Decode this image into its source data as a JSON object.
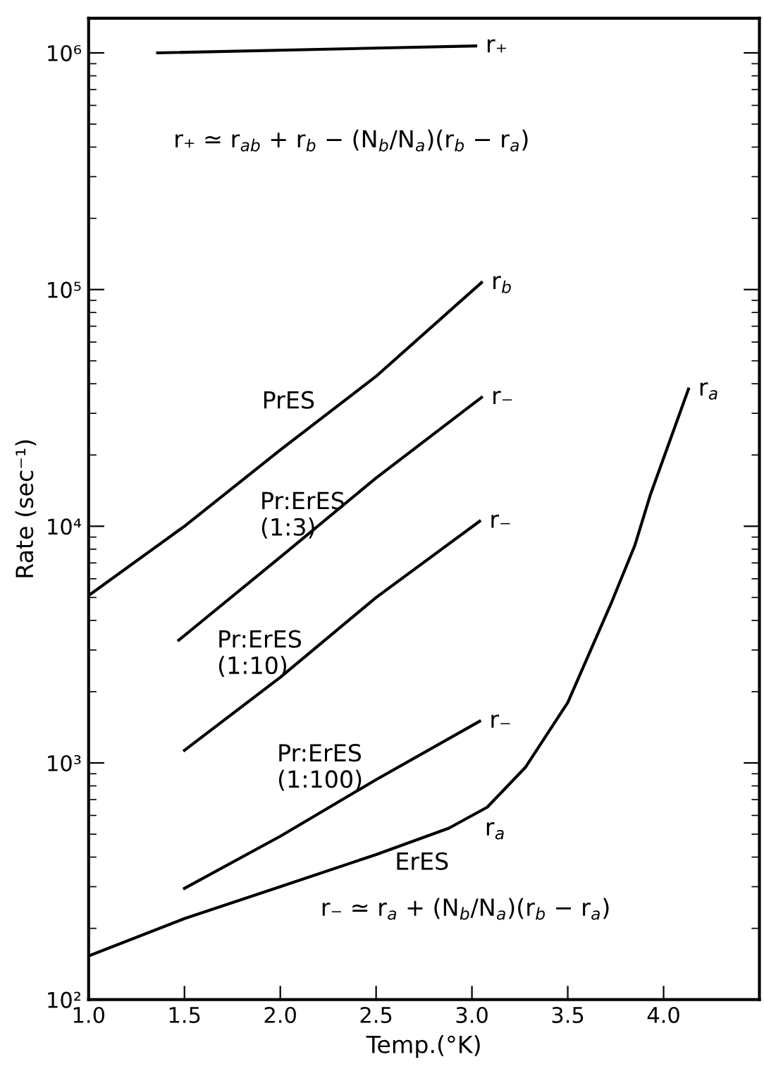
{
  "chart_data": {
    "type": "line",
    "xlabel": "Temp.(°K)",
    "ylabel": "Rate (sec⁻¹)",
    "log": "y",
    "xlim": [
      1.0,
      4.5
    ],
    "xticks": [
      {
        "value": 1.0,
        "label": "1.0"
      },
      1.5,
      {
        "value": 2.0,
        "label": "2.0"
      },
      2.5,
      {
        "value": 3.0,
        "label": "3.0"
      },
      3.5,
      {
        "value": 4.0,
        "label": "4.0"
      }
    ],
    "ylim": [
      100,
      1400000
    ],
    "yticks": [
      {
        "value": 100,
        "label": "10²"
      },
      {
        "value": 200,
        "label": null
      },
      {
        "value": 300,
        "label": null
      },
      {
        "value": 400,
        "label": null
      },
      {
        "value": 500,
        "label": null
      },
      {
        "value": 600,
        "label": null
      },
      {
        "value": 700,
        "label": null
      },
      {
        "value": 800,
        "label": null
      },
      {
        "value": 900,
        "label": null
      },
      {
        "value": 1000,
        "label": "10³"
      },
      {
        "value": 2000,
        "label": null
      },
      {
        "value": 3000,
        "label": null
      },
      {
        "value": 4000,
        "label": null
      },
      {
        "value": 5000,
        "label": null
      },
      {
        "value": 6000,
        "label": null
      },
      {
        "value": 7000,
        "label": null
      },
      {
        "value": 8000,
        "label": null
      },
      {
        "value": 9000,
        "label": null
      },
      {
        "value": 10000,
        "label": "10⁴"
      },
      {
        "value": 20000,
        "label": null
      },
      {
        "value": 30000,
        "label": null
      },
      {
        "value": 40000,
        "label": null
      },
      {
        "value": 50000,
        "label": null
      },
      {
        "value": 60000,
        "label": null
      },
      {
        "value": 70000,
        "label": null
      },
      {
        "value": 80000,
        "label": null
      },
      {
        "value": 90000,
        "label": null
      },
      {
        "value": 100000,
        "label": "10⁵"
      },
      {
        "value": 200000,
        "label": null
      },
      {
        "value": 300000,
        "label": null
      },
      {
        "value": 400000,
        "label": null
      },
      {
        "value": 500000,
        "label": null
      },
      {
        "value": 600000,
        "label": null
      },
      {
        "value": 700000,
        "label": null
      },
      {
        "value": 800000,
        "label": null
      },
      {
        "value": 900000,
        "label": null
      },
      {
        "value": 1000000,
        "label": "10⁶"
      }
    ],
    "grid": false,
    "legend": "right",
    "marker": "none",
    "line_style": "solid",
    "series": [
      {
        "name": "r₊",
        "color": "#000000",
        "x": [
          1.36,
          3.02
        ],
        "values": [
          1000000,
          1070000
        ]
      },
      {
        "name": "r$_{b}$",
        "color": "#000000",
        "x": [
          1.0,
          1.5,
          2.0,
          2.5,
          3.05
        ],
        "values": [
          5100,
          10000,
          21000,
          43000,
          107000
        ]
      },
      {
        "name": "r₋",
        "color": "#000000",
        "x": [
          1.47,
          2.0,
          2.5,
          3.05
        ],
        "values": [
          3300,
          7400,
          16000,
          35000
        ]
      },
      {
        "name": "r₋",
        "color": "#000000",
        "x": [
          1.5,
          2.0,
          2.5,
          3.04
        ],
        "values": [
          1130,
          2300,
          5000,
          10500
        ]
      },
      {
        "name": "r₋",
        "color": "#000000",
        "x": [
          1.5,
          2.0,
          2.5,
          3.04
        ],
        "values": [
          295,
          490,
          850,
          1500
        ]
      },
      {
        "name": "r$_{a}$",
        "color": "#000000",
        "x": [
          1.0,
          1.5,
          2.0,
          2.5,
          2.88,
          3.08,
          3.28,
          3.5,
          3.73,
          3.85,
          3.93,
          4.13
        ],
        "values": [
          153,
          220,
          300,
          410,
          530,
          650,
          960,
          1800,
          4800,
          8300,
          13500,
          38000
        ]
      }
    ],
    "annotations": [
      "r₊ ≃ r$_{ab}$ + r$_{b}$ − (N$_{b}$/N$_{a}$)(r$_{b}$ − r$_{a}$)",
      "PrES",
      "Pr:ErES\n(1:3)",
      "Pr:ErES\n(1:10)",
      "Pr:ErES\n(1:100)",
      "r$_{a}$",
      "ErES",
      "r₋ ≃ r$_{a}$ + (N$_{b}$/N$_{a}$)(r$_{b}$ − r$_{a}$)"
    ]
  }
}
